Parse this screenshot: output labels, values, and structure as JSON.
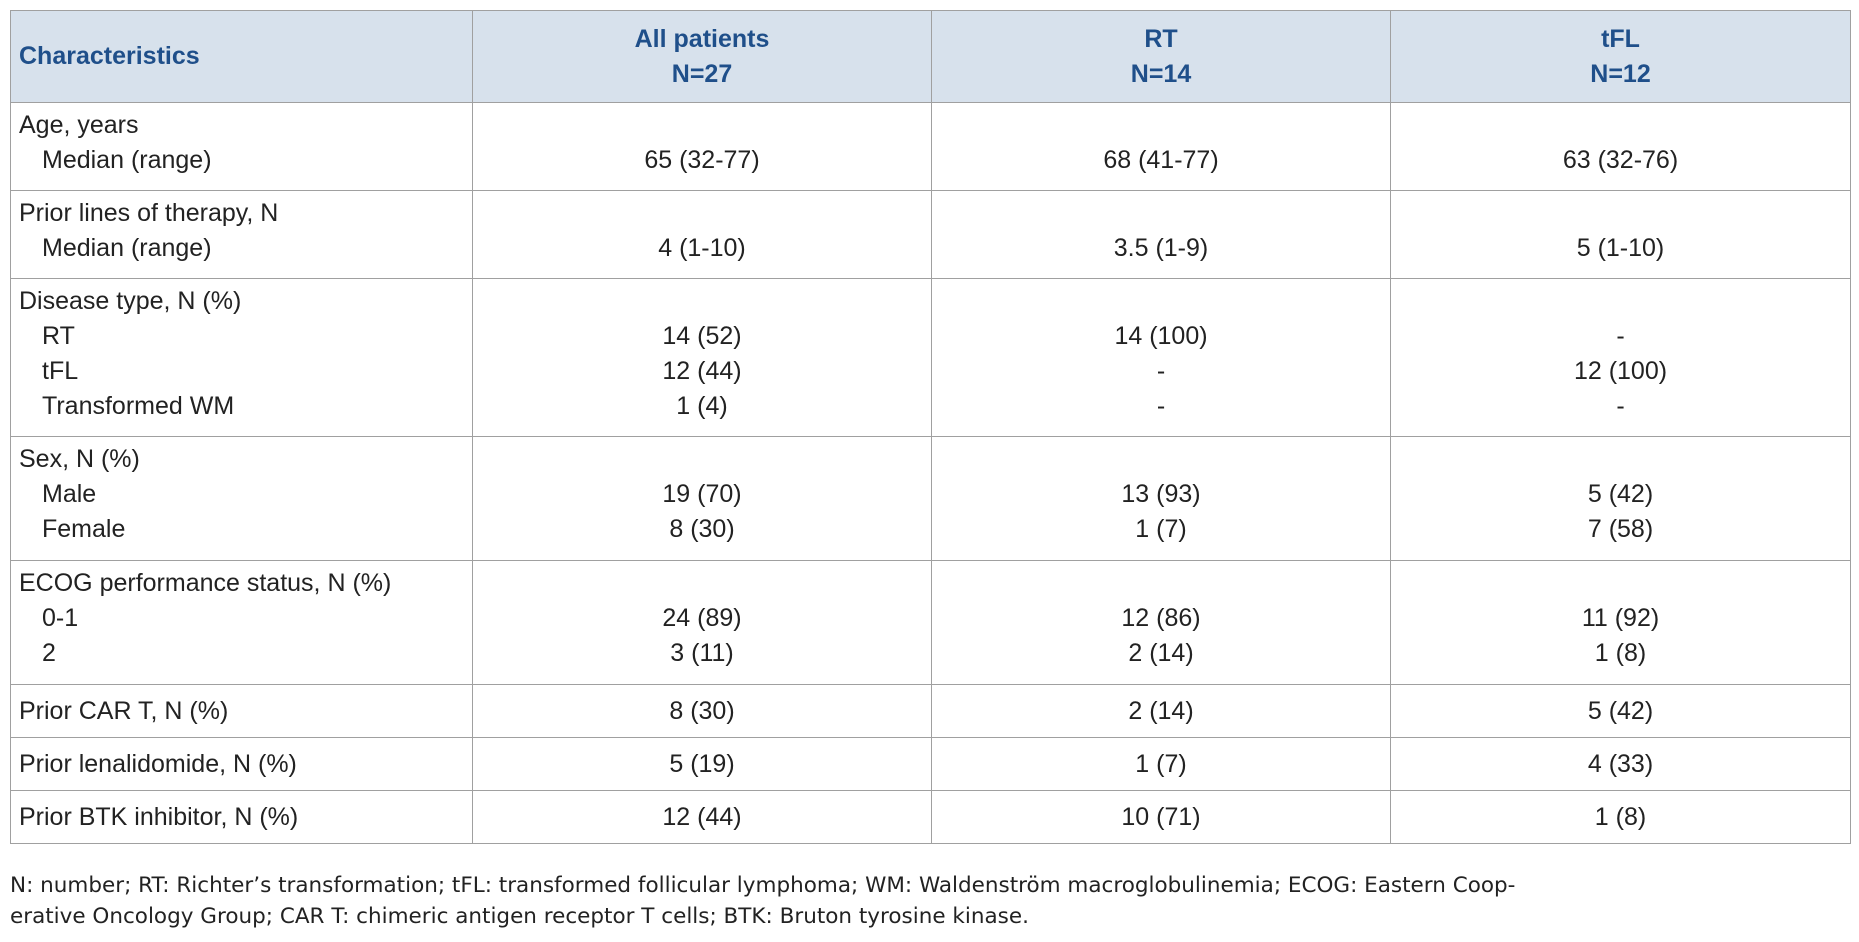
{
  "table": {
    "header": {
      "first": "Characteristics",
      "columns": [
        {
          "name": "All patients",
          "n": "N=27"
        },
        {
          "name": "RT",
          "n": "N=14"
        },
        {
          "name": "tFL",
          "n": "N=12"
        }
      ]
    },
    "rows": [
      {
        "title": "Age, years",
        "items": [
          {
            "label": "Median (range)",
            "values": [
              "65 (32-77)",
              "68 (41-77)",
              "63 (32-76)"
            ]
          }
        ]
      },
      {
        "title": "Prior lines of therapy, N",
        "items": [
          {
            "label": "Median (range)",
            "values": [
              "4 (1-10)",
              "3.5 (1-9)",
              "5 (1-10)"
            ]
          }
        ]
      },
      {
        "title": "Disease type, N (%)",
        "items": [
          {
            "label": "RT",
            "values": [
              "14 (52)",
              "14 (100)",
              "-"
            ]
          },
          {
            "label": "tFL",
            "values": [
              "12 (44)",
              "-",
              "12 (100)"
            ]
          },
          {
            "label": "Transformed WM",
            "values": [
              "1 (4)",
              "-",
              "-"
            ]
          }
        ]
      },
      {
        "title": "Sex, N (%)",
        "items": [
          {
            "label": "Male",
            "values": [
              "19 (70)",
              "13 (93)",
              "5 (42)"
            ]
          },
          {
            "label": "Female",
            "values": [
              "8 (30)",
              "1 (7)",
              "7 (58)"
            ]
          }
        ]
      },
      {
        "title": "ECOG performance status, N (%)",
        "items": [
          {
            "label": "0-1",
            "values": [
              "24 (89)",
              "12 (86)",
              "11 (92)"
            ]
          },
          {
            "label": "2",
            "values": [
              "3 (11)",
              "2 (14)",
              "1 (8)"
            ]
          }
        ]
      },
      {
        "title": "Prior CAR T, N (%)",
        "values": [
          "8 (30)",
          "2 (14)",
          "5 (42)"
        ]
      },
      {
        "title": "Prior lenalidomide, N (%)",
        "values": [
          "5 (19)",
          "1 (7)",
          "4 (33)"
        ]
      },
      {
        "title": "Prior BTK inhibitor, N (%)",
        "values": [
          "12 (44)",
          "10 (71)",
          "1 (8)"
        ]
      }
    ]
  },
  "footnote": [
    "N: number; RT: Richter’s transformation; tFL: transformed follicular lymphoma; WM: Waldenström macroglobulinemia; ECOG: Eastern Coop-",
    "erative Oncology Group; CAR T: chimeric antigen receptor T cells; BTK: Bruton tyrosine kinase."
  ]
}
